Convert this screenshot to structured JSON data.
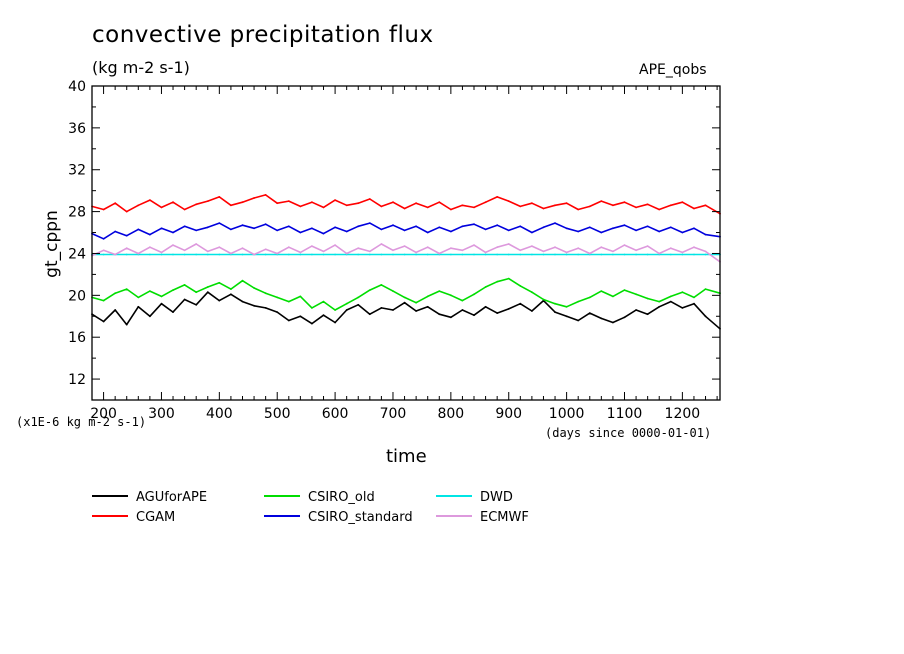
{
  "chart_data": {
    "type": "line",
    "title": "convective precipitation flux",
    "subtitle": "(kg m-2 s-1)",
    "dataset_label": "APE_qobs",
    "xlabel": "time",
    "ylabel": "gt_cppn",
    "scale_note": "(x1E-6 kg m-2 s-1)",
    "x_units_note": "(days since 0000-01-01)",
    "xlim": [
      180,
      1265
    ],
    "ylim": [
      10,
      40
    ],
    "x_ticks": [
      200,
      300,
      400,
      500,
      600,
      700,
      800,
      900,
      1000,
      1100,
      1200
    ],
    "y_ticks": [
      12,
      16,
      20,
      24,
      28,
      32,
      36,
      40
    ],
    "grid": false,
    "legend_position": "bottom-left",
    "x": [
      180,
      200,
      220,
      240,
      260,
      280,
      300,
      320,
      340,
      360,
      380,
      400,
      420,
      440,
      460,
      480,
      500,
      520,
      540,
      560,
      580,
      600,
      620,
      640,
      660,
      680,
      700,
      720,
      740,
      760,
      780,
      800,
      820,
      840,
      860,
      880,
      900,
      920,
      940,
      960,
      980,
      1000,
      1020,
      1040,
      1060,
      1080,
      1100,
      1120,
      1140,
      1160,
      1180,
      1200,
      1220,
      1240,
      1265
    ],
    "series": [
      {
        "name": "AGUforAPE",
        "color": "#000000",
        "values": [
          18.2,
          17.5,
          18.6,
          17.2,
          18.9,
          18.0,
          19.2,
          18.4,
          19.6,
          19.1,
          20.3,
          19.5,
          20.1,
          19.4,
          19.0,
          18.8,
          18.4,
          17.6,
          18.0,
          17.3,
          18.1,
          17.4,
          18.6,
          19.1,
          18.2,
          18.8,
          18.6,
          19.3,
          18.5,
          18.9,
          18.2,
          17.9,
          18.6,
          18.1,
          18.9,
          18.3,
          18.7,
          19.2,
          18.5,
          19.5,
          18.4,
          18.0,
          17.6,
          18.3,
          17.8,
          17.4,
          17.9,
          18.6,
          18.2,
          18.9,
          19.4,
          18.8,
          19.2,
          18.0,
          16.8
        ]
      },
      {
        "name": "CGAM",
        "color": "#ff0000",
        "values": [
          28.5,
          28.2,
          28.8,
          28.0,
          28.6,
          29.1,
          28.4,
          28.9,
          28.2,
          28.7,
          29.0,
          29.4,
          28.6,
          28.9,
          29.3,
          29.6,
          28.8,
          29.0,
          28.5,
          28.9,
          28.4,
          29.1,
          28.6,
          28.8,
          29.2,
          28.5,
          28.9,
          28.3,
          28.8,
          28.4,
          28.9,
          28.2,
          28.6,
          28.4,
          28.9,
          29.4,
          29.0,
          28.5,
          28.8,
          28.3,
          28.6,
          28.8,
          28.2,
          28.5,
          29.0,
          28.6,
          28.9,
          28.4,
          28.7,
          28.2,
          28.6,
          28.9,
          28.3,
          28.6,
          27.8
        ]
      },
      {
        "name": "CSIRO_old",
        "color": "#00dd00",
        "values": [
          19.8,
          19.5,
          20.2,
          20.6,
          19.8,
          20.4,
          19.9,
          20.5,
          21.0,
          20.3,
          20.8,
          21.2,
          20.6,
          21.4,
          20.7,
          20.2,
          19.8,
          19.4,
          19.9,
          18.8,
          19.4,
          18.6,
          19.2,
          19.8,
          20.5,
          21.0,
          20.4,
          19.8,
          19.3,
          19.9,
          20.4,
          20.0,
          19.5,
          20.1,
          20.8,
          21.3,
          21.6,
          20.9,
          20.3,
          19.6,
          19.2,
          18.9,
          19.4,
          19.8,
          20.4,
          19.9,
          20.5,
          20.1,
          19.7,
          19.4,
          19.9,
          20.3,
          19.8,
          20.6,
          20.2
        ]
      },
      {
        "name": "CSIRO_standard",
        "color": "#0000dd",
        "values": [
          25.9,
          25.4,
          26.1,
          25.7,
          26.3,
          25.8,
          26.4,
          26.0,
          26.6,
          26.2,
          26.5,
          26.9,
          26.3,
          26.7,
          26.4,
          26.8,
          26.2,
          26.6,
          26.0,
          26.4,
          25.9,
          26.5,
          26.1,
          26.6,
          26.9,
          26.3,
          26.7,
          26.2,
          26.6,
          26.0,
          26.5,
          26.1,
          26.6,
          26.8,
          26.3,
          26.7,
          26.2,
          26.6,
          26.0,
          26.5,
          26.9,
          26.4,
          26.1,
          26.5,
          26.0,
          26.4,
          26.7,
          26.2,
          26.6,
          26.1,
          26.5,
          26.0,
          26.4,
          25.8,
          25.6
        ]
      },
      {
        "name": "DWD",
        "color": "#00e5e5",
        "values": [
          23.9,
          23.9,
          23.9,
          23.9,
          23.9,
          23.9,
          23.9,
          23.9,
          23.9,
          23.9,
          23.9,
          23.9,
          23.9,
          23.9,
          23.9,
          23.9,
          23.9,
          23.9,
          23.9,
          23.9,
          23.9,
          23.9,
          23.9,
          23.9,
          23.9,
          23.9,
          23.9,
          23.9,
          23.9,
          23.9,
          23.9,
          23.9,
          23.9,
          23.9,
          23.9,
          23.9,
          23.9,
          23.9,
          23.9,
          23.9,
          23.9,
          23.9,
          23.9,
          23.9,
          23.9,
          23.9,
          23.9,
          23.9,
          23.9,
          23.9,
          23.9,
          23.9,
          23.9,
          23.9,
          23.9
        ]
      },
      {
        "name": "ECMWF",
        "color": "#dd99dd",
        "values": [
          23.8,
          24.3,
          23.9,
          24.5,
          24.0,
          24.6,
          24.1,
          24.8,
          24.3,
          24.9,
          24.2,
          24.6,
          24.0,
          24.5,
          23.9,
          24.4,
          24.0,
          24.6,
          24.1,
          24.7,
          24.2,
          24.8,
          24.0,
          24.5,
          24.2,
          24.9,
          24.3,
          24.7,
          24.1,
          24.6,
          24.0,
          24.5,
          24.3,
          24.8,
          24.1,
          24.6,
          24.9,
          24.3,
          24.7,
          24.2,
          24.6,
          24.1,
          24.5,
          24.0,
          24.6,
          24.2,
          24.8,
          24.3,
          24.7,
          24.0,
          24.5,
          24.1,
          24.6,
          24.2,
          23.2
        ]
      }
    ]
  }
}
